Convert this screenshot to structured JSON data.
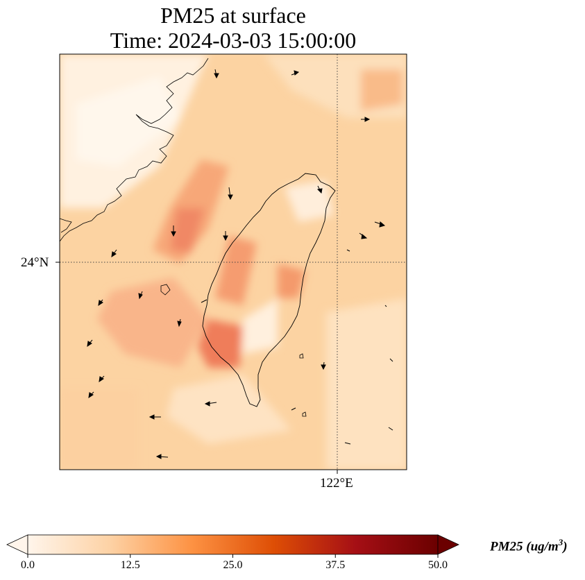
{
  "title": {
    "line1": "PM25 at surface",
    "line2": "Time: 2024-03-03 15:00:00"
  },
  "axes": {
    "lat_label": "24°N",
    "lon_label": "122°E",
    "gridline_style": "dotted"
  },
  "colorbar": {
    "label": "PM25 (ug/m",
    "label_superscript": "3",
    "label_suffix": ")",
    "ticks": [
      "0.0",
      "12.5",
      "25.0",
      "37.5",
      "50.0"
    ],
    "min": 0,
    "max": 50,
    "extend": "both",
    "colormap": [
      "#fff5eb",
      "#fdd2a5",
      "#fd9243",
      "#de4e05",
      "#a50f15",
      "#6b0000"
    ]
  },
  "colors": {
    "background_field": "#fdd7a8",
    "coastline": "#000000"
  }
}
